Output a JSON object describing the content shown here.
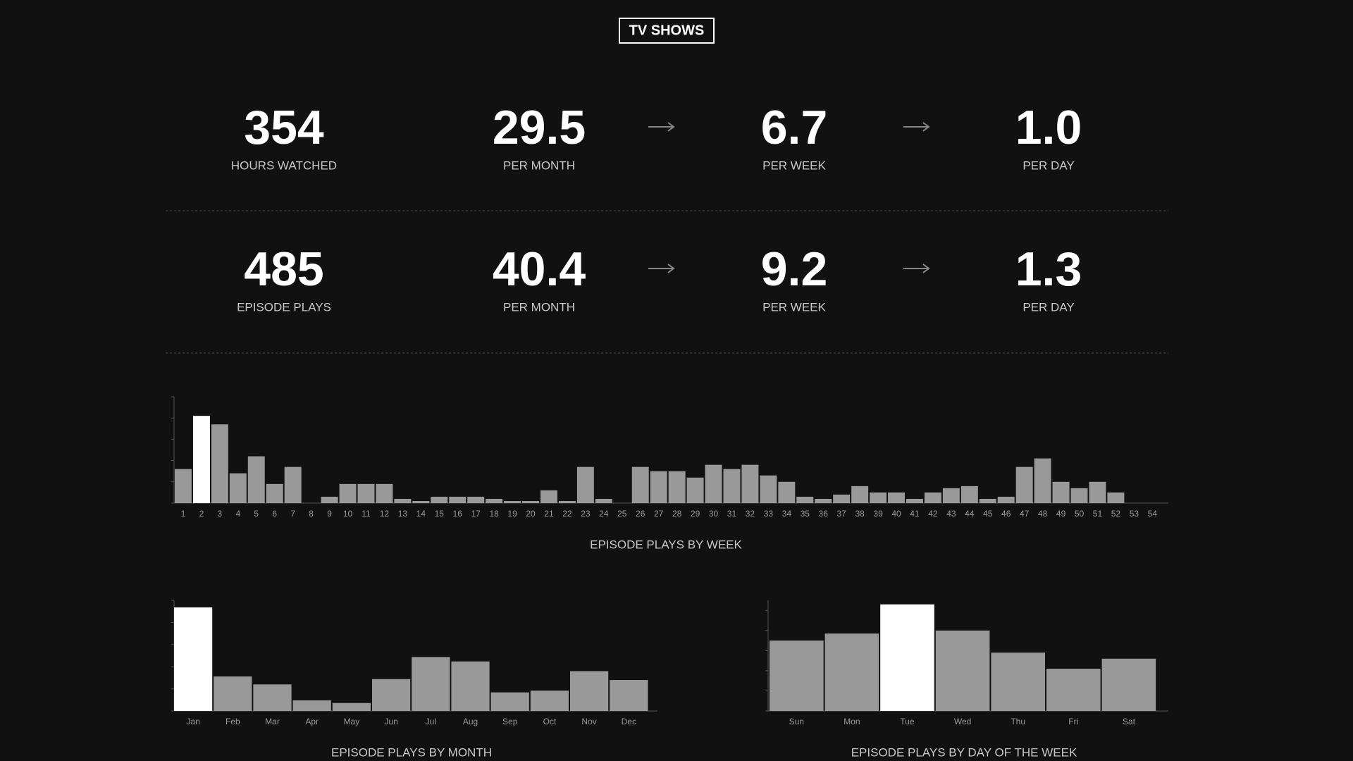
{
  "header": {
    "title": "TV SHOWS"
  },
  "stats": [
    [
      {
        "value": "354",
        "label": "HOURS WATCHED"
      },
      {
        "value": "29.5",
        "label": "PER MONTH"
      },
      {
        "value": "6.7",
        "label": "PER WEEK"
      },
      {
        "value": "1.0",
        "label": "PER DAY"
      }
    ],
    [
      {
        "value": "485",
        "label": "EPISODE PLAYS"
      },
      {
        "value": "40.4",
        "label": "PER MONTH"
      },
      {
        "value": "9.2",
        "label": "PER WEEK"
      },
      {
        "value": "1.3",
        "label": "PER DAY"
      }
    ]
  ],
  "chart_data": [
    {
      "type": "bar",
      "title": "EPISODE PLAYS BY WEEK",
      "categories": [
        1,
        2,
        3,
        4,
        5,
        6,
        7,
        8,
        9,
        10,
        11,
        12,
        13,
        14,
        15,
        16,
        17,
        18,
        19,
        20,
        21,
        22,
        23,
        24,
        25,
        26,
        27,
        28,
        29,
        30,
        31,
        32,
        33,
        34,
        35,
        36,
        37,
        38,
        39,
        40,
        41,
        42,
        43,
        44,
        45,
        46,
        47,
        48,
        49,
        50,
        51,
        52,
        53,
        54
      ],
      "values": [
        16,
        41,
        37,
        14,
        22,
        9,
        17,
        0,
        3,
        9,
        9,
        9,
        2,
        1,
        3,
        3,
        3,
        2,
        1,
        1,
        6,
        1,
        17,
        2,
        0,
        17,
        15,
        15,
        12,
        18,
        16,
        18,
        13,
        10,
        3,
        2,
        4,
        8,
        5,
        5,
        2,
        5,
        7,
        8,
        2,
        3,
        17,
        21,
        10,
        7,
        10,
        5,
        0,
        0
      ],
      "color": "#999999",
      "highlight_color": "#ffffff",
      "ylim": [
        0,
        50
      ],
      "yticks": [
        0,
        10,
        20,
        30,
        40,
        50
      ]
    },
    {
      "type": "bar",
      "title": "EPISODE PLAYS BY MONTH",
      "categories": [
        "Jan",
        "Feb",
        "Mar",
        "Apr",
        "May",
        "Jun",
        "Jul",
        "Aug",
        "Sep",
        "Oct",
        "Nov",
        "Dec"
      ],
      "values": [
        117,
        39,
        30,
        12,
        9,
        36,
        61,
        56,
        21,
        23,
        45,
        35
      ],
      "color": "#999999",
      "highlight_color": "#ffffff",
      "ylim": [
        0,
        125
      ],
      "yticks": [
        0,
        25,
        50,
        75,
        100,
        125
      ]
    },
    {
      "type": "bar",
      "title": "EPISODE PLAYS BY DAY OF THE WEEK",
      "categories": [
        "Sun",
        "Mon",
        "Tue",
        "Wed",
        "Thu",
        "Fri",
        "Sat"
      ],
      "values": [
        70,
        77,
        106,
        80,
        58,
        42,
        52
      ],
      "color": "#999999",
      "highlight_color": "#ffffff",
      "ylim": [
        0,
        110
      ],
      "yticks": [
        0,
        20,
        40,
        60,
        80,
        100
      ]
    }
  ]
}
